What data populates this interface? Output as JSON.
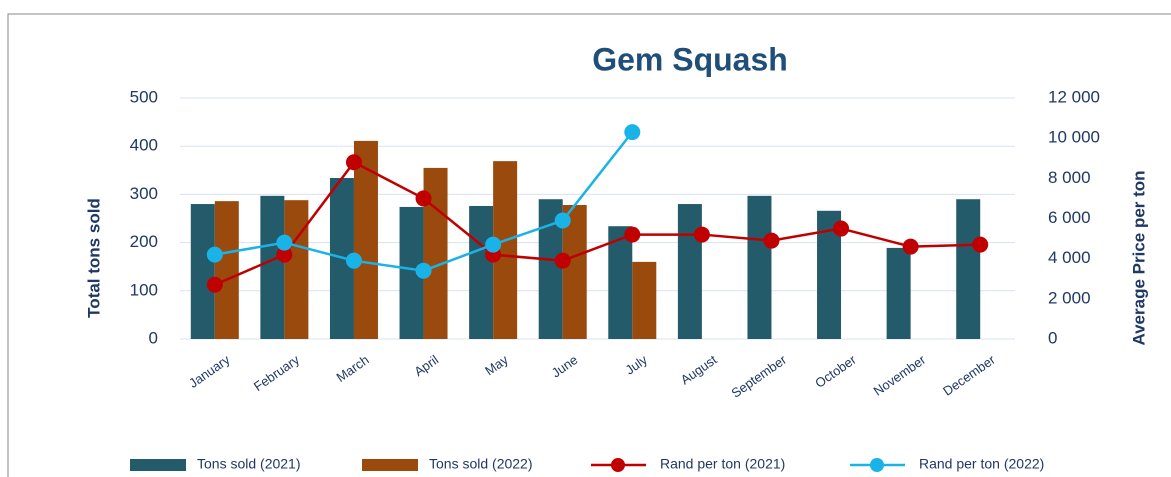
{
  "chart_data": {
    "type": "bar-line",
    "title": "Gem Squash",
    "categories": [
      "January",
      "February",
      "March",
      "April",
      "May",
      "June",
      "July",
      "August",
      "September",
      "October",
      "November",
      "December"
    ],
    "series": [
      {
        "name": "Tons sold (2021)",
        "type": "bar",
        "color": "#245b6b",
        "values": [
          280,
          297,
          334,
          274,
          276,
          290,
          234,
          280,
          297,
          266,
          189,
          290
        ]
      },
      {
        "name": "Tons sold (2022)",
        "type": "bar",
        "color": "#9a4a0d",
        "values": [
          286,
          288,
          411,
          355,
          369,
          278,
          160,
          null,
          null,
          null,
          null,
          null
        ]
      },
      {
        "name": "Rand per ton (2021)",
        "type": "line",
        "axis": "y2",
        "color": "#c00000",
        "values": [
          2700,
          4200,
          8800,
          7000,
          4200,
          3900,
          5200,
          5200,
          4900,
          5500,
          4600,
          4700
        ]
      },
      {
        "name": "Rand per ton (2022)",
        "type": "line",
        "axis": "y2",
        "color": "#1ab3e8",
        "values": [
          4200,
          4800,
          3900,
          3400,
          4700,
          5900,
          10300,
          null,
          null,
          null,
          null,
          null
        ]
      }
    ],
    "ylabel": "Total tons sold",
    "y2label": "Average Price per ton",
    "ylim": [
      0,
      500
    ],
    "yticks": [
      0,
      100,
      200,
      300,
      400,
      500
    ],
    "y2lim": [
      0,
      12000
    ],
    "y2ticks": [
      0,
      {
        "value": 2000,
        "label": "2 000"
      },
      {
        "value": 4000,
        "label": "4 000"
      },
      {
        "value": 6000,
        "label": "6 000"
      },
      {
        "value": 8000,
        "label": "8 000"
      },
      {
        "value": 10000,
        "label": "10 000"
      },
      {
        "value": 12000,
        "label": "12 000"
      }
    ],
    "grid": true,
    "legend": "bottom"
  }
}
